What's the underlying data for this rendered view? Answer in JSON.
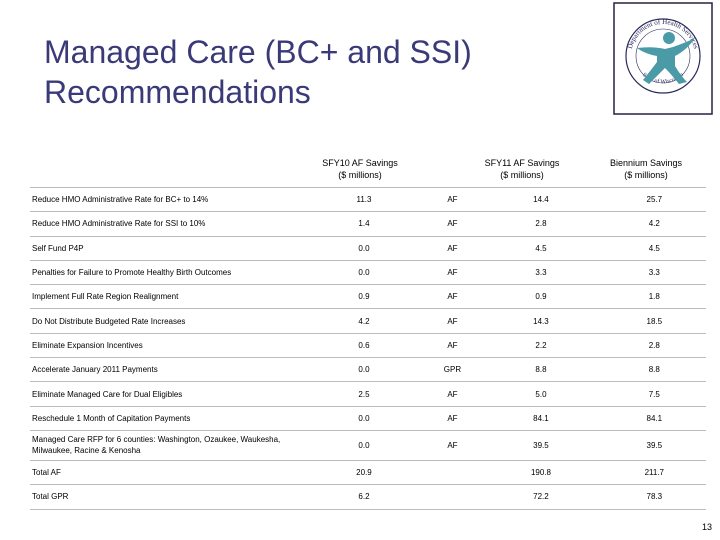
{
  "slide": {
    "title_line1": "Managed Care (BC+ and SSI)",
    "title_line2": "Recommendations",
    "page_number": "13"
  },
  "logo": {
    "text_top": "Department of Health Services",
    "text_bottom": "State of Wisconsin"
  },
  "columns": {
    "sfy10": {
      "line1": "SFY10 AF Savings",
      "line2": "($ millions)"
    },
    "sfy11": {
      "line1": "SFY11 AF Savings",
      "line2": "($ millions)"
    },
    "biennium": {
      "line1": "Biennium Savings",
      "line2": "($ millions)"
    }
  },
  "rows": [
    {
      "name": "Reduce HMO Administrative Rate for BC+ to 14%",
      "sfy10": "11.3",
      "fund": "AF",
      "sfy11": "14.4",
      "biennium": "25.7"
    },
    {
      "name": "Reduce HMO Administrative Rate for SSI to 10%",
      "sfy10": "1.4",
      "fund": "AF",
      "sfy11": "2.8",
      "biennium": "4.2"
    },
    {
      "name": "Self Fund P4P",
      "sfy10": "0.0",
      "fund": "AF",
      "sfy11": "4.5",
      "biennium": "4.5"
    },
    {
      "name": "Penalties for Failure to Promote Healthy Birth Outcomes",
      "sfy10": "0.0",
      "fund": "AF",
      "sfy11": "3.3",
      "biennium": "3.3"
    },
    {
      "name": "Implement Full Rate Region Realignment",
      "sfy10": "0.9",
      "fund": "AF",
      "sfy11": "0.9",
      "biennium": "1.8"
    },
    {
      "name": "Do Not Distribute Budgeted Rate Increases",
      "sfy10": "4.2",
      "fund": "AF",
      "sfy11": "14.3",
      "biennium": "18.5"
    },
    {
      "name": "Eliminate Expansion Incentives",
      "sfy10": "0.6",
      "fund": "AF",
      "sfy11": "2.2",
      "biennium": "2.8"
    },
    {
      "name": "Accelerate January 2011 Payments",
      "sfy10": "0.0",
      "fund": "GPR",
      "sfy11": "8.8",
      "biennium": "8.8"
    },
    {
      "name": "Eliminate Managed Care for Dual Eligibles",
      "sfy10": "2.5",
      "fund": "AF",
      "sfy11": "5.0",
      "biennium": "7.5"
    },
    {
      "name": "Reschedule 1 Month of Capitation Payments",
      "sfy10": "0.0",
      "fund": "AF",
      "sfy11": "84.1",
      "biennium": "84.1"
    },
    {
      "name": "Managed Care RFP for 6 counties: Washington, Ozaukee, Waukesha, Milwaukee, Racine & Kenosha",
      "sfy10": "0.0",
      "fund": "AF",
      "sfy11": "39.5",
      "biennium": "39.5"
    },
    {
      "name": "Total AF",
      "sfy10": "20.9",
      "fund": "",
      "sfy11": "190.8",
      "biennium": "211.7"
    },
    {
      "name": "Total GPR",
      "sfy10": "6.2",
      "fund": "",
      "sfy11": "72.2",
      "biennium": "78.3"
    }
  ]
}
